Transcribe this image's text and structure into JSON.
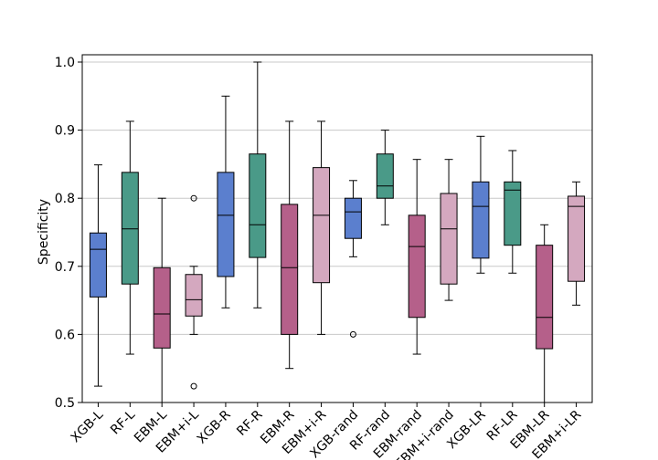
{
  "chart_data": {
    "type": "box",
    "y_label": "Specificity",
    "categories": [
      "XGB-L",
      "RF-L",
      "EBM-L",
      "EBM+i-L",
      "XGB-R",
      "RF-R",
      "EBM-R",
      "EBM+i-R",
      "XGB-rand",
      "RF-rand",
      "EBM-rand",
      "EBM+i-rand",
      "XGB-LR",
      "RF-LR",
      "EBM-LR",
      "EBM+i-LR"
    ],
    "boxes": [
      {
        "color": "#5b7fce",
        "whislo": 0.524,
        "q1": 0.655,
        "med": 0.725,
        "q3": 0.749,
        "whishi": 0.849,
        "fliers": []
      },
      {
        "color": "#4a9a88",
        "whislo": 0.571,
        "q1": 0.674,
        "med": 0.755,
        "q3": 0.838,
        "whishi": 0.913,
        "fliers": []
      },
      {
        "color": "#b5608a",
        "whislo": 0.5,
        "q1": 0.58,
        "med": 0.63,
        "q3": 0.698,
        "whishi": 0.8,
        "fliers": []
      },
      {
        "color": "#d4a8bf",
        "whislo": 0.6,
        "q1": 0.627,
        "med": 0.651,
        "q3": 0.688,
        "whishi": 0.7,
        "fliers": [
          0.8,
          0.524
        ]
      },
      {
        "color": "#5b7fce",
        "whislo": 0.639,
        "q1": 0.685,
        "med": 0.775,
        "q3": 0.838,
        "whishi": 0.95,
        "fliers": []
      },
      {
        "color": "#4a9a88",
        "whislo": 0.639,
        "q1": 0.713,
        "med": 0.761,
        "q3": 0.865,
        "whishi": 1.0,
        "fliers": []
      },
      {
        "color": "#b5608a",
        "whislo": 0.55,
        "q1": 0.6,
        "med": 0.698,
        "q3": 0.791,
        "whishi": 0.913,
        "fliers": []
      },
      {
        "color": "#d4a8bf",
        "whislo": 0.6,
        "q1": 0.676,
        "med": 0.775,
        "q3": 0.845,
        "whishi": 0.913,
        "fliers": []
      },
      {
        "color": "#5b7fce",
        "whislo": 0.714,
        "q1": 0.741,
        "med": 0.78,
        "q3": 0.8,
        "whishi": 0.826,
        "fliers": [
          0.6
        ]
      },
      {
        "color": "#4a9a88",
        "whislo": 0.761,
        "q1": 0.8,
        "med": 0.818,
        "q3": 0.865,
        "whishi": 0.9,
        "fliers": []
      },
      {
        "color": "#b5608a",
        "whislo": 0.571,
        "q1": 0.625,
        "med": 0.729,
        "q3": 0.775,
        "whishi": 0.857,
        "fliers": []
      },
      {
        "color": "#d4a8bf",
        "whislo": 0.65,
        "q1": 0.674,
        "med": 0.755,
        "q3": 0.807,
        "whishi": 0.857,
        "fliers": []
      },
      {
        "color": "#5b7fce",
        "whislo": 0.69,
        "q1": 0.712,
        "med": 0.788,
        "q3": 0.824,
        "whishi": 0.891,
        "fliers": []
      },
      {
        "color": "#4a9a88",
        "whislo": 0.69,
        "q1": 0.731,
        "med": 0.812,
        "q3": 0.824,
        "whishi": 0.87,
        "fliers": []
      },
      {
        "color": "#b5608a",
        "whislo": 0.5,
        "q1": 0.579,
        "med": 0.625,
        "q3": 0.731,
        "whishi": 0.761,
        "fliers": []
      },
      {
        "color": "#d4a8bf",
        "whislo": 0.643,
        "q1": 0.678,
        "med": 0.788,
        "q3": 0.803,
        "whishi": 0.824,
        "fliers": []
      }
    ],
    "ylim": [
      0.5,
      1.0
    ],
    "yticks": [
      0.5,
      0.6,
      0.7,
      0.8,
      0.9,
      {
        "value": 1.0,
        "label": "1.0"
      }
    ],
    "grid": true
  }
}
